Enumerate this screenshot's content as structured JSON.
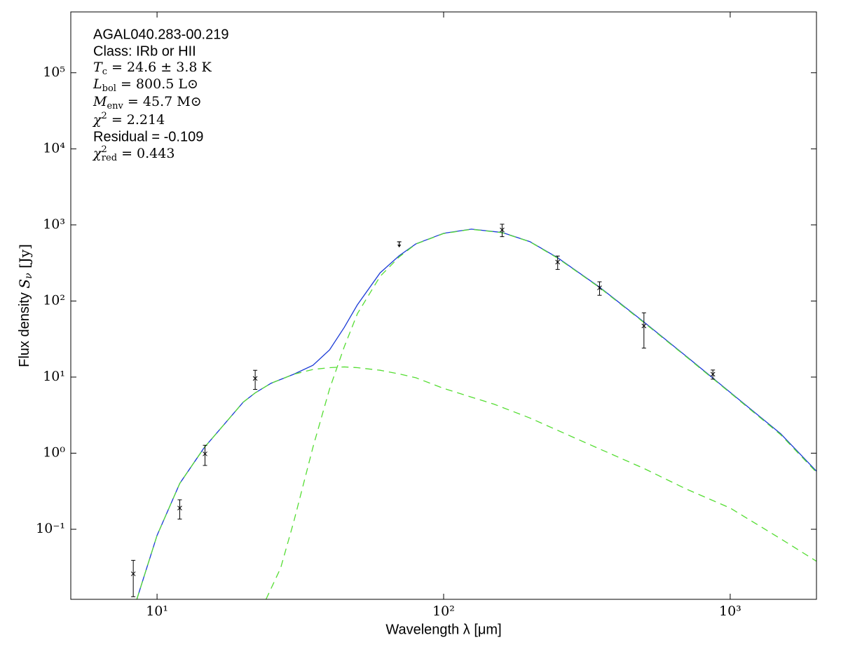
{
  "chart_data": {
    "type": "line",
    "xlabel": "Wavelength λ [μm]",
    "ylabel": {
      "text": "Flux density ",
      "main": "S",
      "sub": "ν",
      "rest": " [Jy]"
    },
    "xscale": "log",
    "yscale": "log",
    "xlim": [
      5,
      2000
    ],
    "ylim": [
      0.012,
      630000
    ],
    "xticks": [
      {
        "value": 10,
        "label": "10¹"
      },
      {
        "value": 100,
        "label": "10²"
      },
      {
        "value": 1000,
        "label": "10³"
      }
    ],
    "yticks": [
      {
        "value": 0.1,
        "label": "10⁻¹"
      },
      {
        "value": 1,
        "label": "10⁰"
      },
      {
        "value": 10,
        "label": "10¹"
      },
      {
        "value": 100,
        "label": "10²"
      },
      {
        "value": 1000,
        "label": "10³"
      },
      {
        "value": 10000,
        "label": "10⁴"
      },
      {
        "value": 100000,
        "label": "10⁵"
      }
    ],
    "annotations": [
      "AGAL040.283-00.219",
      "Class: IRb or HII",
      {
        "main": "T",
        "sub": "c",
        "rest": " = 24.6 ± 3.8 K"
      },
      {
        "main": "L",
        "sub": "bol",
        "rest": " = 800.5 L⊙"
      },
      {
        "main": "M",
        "sub": "env",
        "rest": " = 45.7 M⊙"
      },
      {
        "main": "χ",
        "sup": "2",
        "rest": " = 2.214"
      },
      "Residual = -0.109",
      {
        "main": "χ",
        "sup": "2",
        "sub": "red",
        "rest": " = 0.443"
      }
    ],
    "series": [
      {
        "color": "#1a3ad6",
        "style": "solid",
        "x": [
          8.5,
          10,
          12,
          14.6,
          20,
          22,
          25,
          30,
          35,
          40,
          45,
          50,
          60,
          70,
          80,
          100,
          125,
          160,
          200,
          250,
          350,
          500,
          700,
          1000,
          1500,
          2000
        ],
        "values": [
          0.012,
          0.083,
          0.4,
          1.18,
          4.7,
          6.2,
          8.3,
          10.9,
          14.3,
          22.8,
          45,
          89,
          234,
          394,
          563,
          776,
          880,
          795,
          603,
          370,
          152,
          53,
          19,
          6.3,
          1.8,
          0.58
        ]
      },
      {
        "color": "#55dd33",
        "style": "dashed",
        "x": [
          8.5,
          10,
          12,
          14.6,
          20,
          22,
          25,
          30,
          35,
          40,
          45,
          50,
          60,
          70,
          80,
          100,
          150,
          200,
          300,
          500,
          700,
          1000,
          1500,
          2000
        ],
        "values": [
          0.012,
          0.083,
          0.4,
          1.18,
          4.7,
          6.2,
          8.3,
          10.9,
          12.6,
          13.3,
          13.6,
          13.3,
          12.3,
          11,
          9.8,
          7.1,
          4.4,
          2.9,
          1.47,
          0.63,
          0.34,
          0.19,
          0.075,
          0.038
        ]
      },
      {
        "color": "#55dd33",
        "style": "dashed",
        "x": [
          24,
          27,
          30,
          35,
          40,
          45,
          50,
          60,
          70,
          80,
          100,
          125,
          160,
          200,
          250,
          350,
          500,
          700,
          1000,
          1500,
          2000
        ],
        "values": [
          0.012,
          0.031,
          0.126,
          1.2,
          7,
          25,
          68,
          210,
          380,
          560,
          770,
          875,
          790,
          600,
          365,
          150,
          52,
          18.7,
          6.2,
          1.75,
          0.56
        ]
      }
    ],
    "points": {
      "color": "#000000",
      "x": [
        8.26,
        12.0,
        14.7,
        22.0,
        70,
        160,
        250,
        350,
        500,
        870
      ],
      "values": [
        0.026,
        0.19,
        0.98,
        9.6,
        600,
        860,
        325,
        149,
        47,
        10.9
      ],
      "errors": [
        0.013,
        0.054,
        0.29,
        2.7,
        null,
        160,
        65,
        30,
        23,
        1.5
      ],
      "upper_limits": [
        false,
        false,
        false,
        false,
        true,
        false,
        false,
        false,
        false,
        false
      ]
    }
  }
}
